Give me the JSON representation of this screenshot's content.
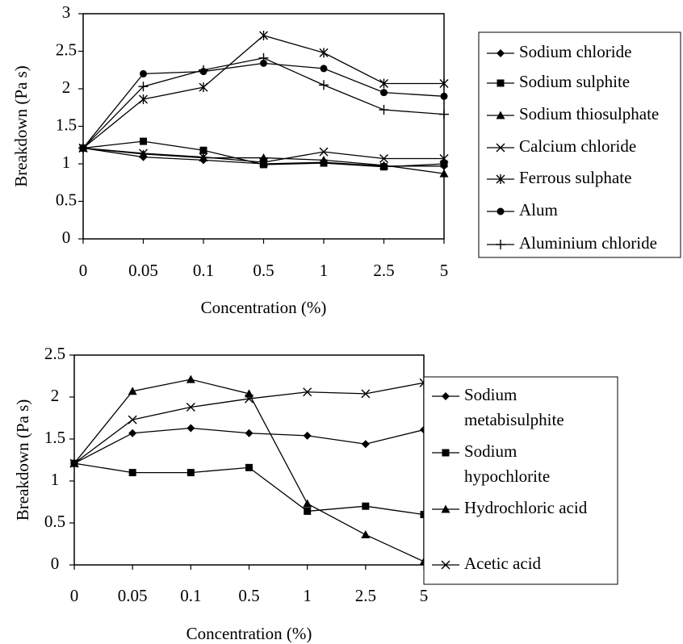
{
  "chart_data": [
    {
      "type": "line",
      "xlabel": "Concentration (%)",
      "ylabel": "Breakdown (Pa s)",
      "categories": [
        "0",
        "0.05",
        "0.1",
        "0.5",
        "1",
        "2.5",
        "5"
      ],
      "y_ticks": [
        "0",
        "0.5",
        "1",
        "1.5",
        "2",
        "2.5",
        "3"
      ],
      "ylim": [
        0,
        3
      ],
      "grid": false,
      "legend_position": "right",
      "series": [
        {
          "name": "Sodium chloride",
          "marker": "diamond",
          "values": [
            1.21,
            1.09,
            1.05,
            1.0,
            1.02,
            0.97,
            0.97
          ]
        },
        {
          "name": "Sodium sulphite",
          "marker": "square",
          "values": [
            1.21,
            1.3,
            1.18,
            0.99,
            1.01,
            0.96,
            1.0
          ]
        },
        {
          "name": "Sodium thiosulphate",
          "marker": "triangle",
          "values": [
            1.21,
            1.13,
            1.08,
            1.08,
            1.05,
            0.98,
            0.87
          ]
        },
        {
          "name": "Calcium chloride",
          "marker": "x",
          "values": [
            1.21,
            1.14,
            1.09,
            1.02,
            1.16,
            1.07,
            1.07
          ]
        },
        {
          "name": "Ferrous sulphate",
          "marker": "asterisk",
          "values": [
            1.21,
            1.86,
            2.02,
            2.71,
            2.48,
            2.07,
            2.07
          ]
        },
        {
          "name": "Alum",
          "marker": "circle",
          "values": [
            1.21,
            2.2,
            2.23,
            2.34,
            2.27,
            1.95,
            1.9
          ]
        },
        {
          "name": "Aluminium chloride",
          "marker": "plus",
          "values": [
            1.21,
            2.03,
            2.25,
            2.41,
            2.05,
            1.72,
            1.66
          ]
        }
      ]
    },
    {
      "type": "line",
      "xlabel": "Concentration (%)",
      "ylabel": "Breakdown (Pa s)",
      "categories": [
        "0",
        "0.05",
        "0.1",
        "0.5",
        "1",
        "2.5",
        "5"
      ],
      "y_ticks": [
        "0",
        "0.5",
        "1",
        "1.5",
        "2",
        "2.5"
      ],
      "ylim": [
        0,
        2.5
      ],
      "grid": false,
      "legend_position": "right",
      "series": [
        {
          "name": "Sodium metabisulphite",
          "legend_lines": [
            "Sodium",
            "metabisulphite"
          ],
          "marker": "diamond",
          "values": [
            1.21,
            1.57,
            1.63,
            1.57,
            1.54,
            1.44,
            1.61
          ]
        },
        {
          "name": "Sodium hypochlorite",
          "legend_lines": [
            "Sodium",
            "hypochlorite"
          ],
          "marker": "square",
          "values": [
            1.21,
            1.1,
            1.1,
            1.16,
            0.64,
            0.7,
            0.6
          ]
        },
        {
          "name": "Hydrochloric acid",
          "legend_lines": [
            "Hydrochloric acid"
          ],
          "marker": "triangle",
          "values": [
            1.21,
            2.07,
            2.21,
            2.04,
            0.73,
            0.36,
            0.04
          ]
        },
        {
          "name": "Acetic acid",
          "legend_lines": [
            "Acetic acid"
          ],
          "marker": "x",
          "values": [
            1.21,
            1.73,
            1.88,
            1.98,
            2.06,
            2.04,
            2.17
          ]
        }
      ]
    }
  ]
}
